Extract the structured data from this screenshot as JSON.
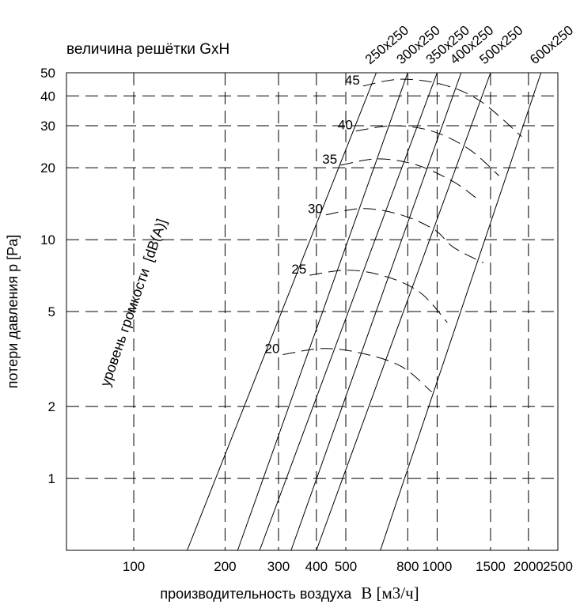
{
  "chart_data": {
    "type": "line",
    "title": "величина решётки GxH",
    "xlabel": "производительность воздуха",
    "xlabel_symbol": "B [м3/ч]",
    "ylabel": "потери давления p [Pa]",
    "noise_label": "уровень громкости  [dB(A)]",
    "x_scale": "log",
    "y_scale": "log",
    "xlim": [
      60,
      2500
    ],
    "ylim": [
      0.5,
      50
    ],
    "x_ticks": [
      100,
      200,
      300,
      400,
      500,
      800,
      1000,
      1500,
      2000,
      2500
    ],
    "y_ticks": [
      1,
      2,
      5,
      10,
      20,
      30,
      40,
      50
    ],
    "grid": true,
    "grille_series": [
      {
        "name": "250x250",
        "points": [
          [
            150,
            0.5
          ],
          [
            630,
            50
          ]
        ]
      },
      {
        "name": "300x250",
        "points": [
          [
            220,
            0.5
          ],
          [
            800,
            50
          ]
        ]
      },
      {
        "name": "350x250",
        "points": [
          [
            260,
            0.5
          ],
          [
            1000,
            50
          ]
        ]
      },
      {
        "name": "400x250",
        "points": [
          [
            330,
            0.5
          ],
          [
            1200,
            50
          ]
        ]
      },
      {
        "name": "500x250",
        "points": [
          [
            400,
            0.5
          ],
          [
            1500,
            50
          ]
        ]
      },
      {
        "name": "600x250",
        "points": [
          [
            650,
            0.5
          ],
          [
            2200,
            50
          ]
        ]
      }
    ],
    "noise_series": [
      {
        "label": "20",
        "points": [
          [
            310,
            3.3
          ],
          [
            420,
            3.5
          ],
          [
            560,
            3.35
          ],
          [
            760,
            2.95
          ],
          [
            960,
            2.3
          ]
        ]
      },
      {
        "label": "25",
        "points": [
          [
            380,
            7.1
          ],
          [
            510,
            7.45
          ],
          [
            680,
            7.0
          ],
          [
            880,
            6.0
          ],
          [
            1080,
            4.5
          ]
        ]
      },
      {
        "label": "30",
        "points": [
          [
            430,
            12.7
          ],
          [
            570,
            13.5
          ],
          [
            760,
            12.7
          ],
          [
            980,
            11.0
          ],
          [
            1130,
            9.3
          ],
          [
            1420,
            8.0
          ]
        ]
      },
      {
        "label": "35",
        "points": [
          [
            480,
            20.5
          ],
          [
            640,
            21.8
          ],
          [
            860,
            20.5
          ],
          [
            1130,
            17.5
          ],
          [
            1340,
            15.0
          ]
        ]
      },
      {
        "label": "40",
        "points": [
          [
            540,
            28.5
          ],
          [
            720,
            30.0
          ],
          [
            960,
            28.5
          ],
          [
            1270,
            24.0
          ],
          [
            1600,
            18.5
          ]
        ]
      },
      {
        "label": "45",
        "points": [
          [
            570,
            44.0
          ],
          [
            760,
            47.0
          ],
          [
            1050,
            44.5
          ],
          [
            1390,
            38.0
          ],
          [
            1900,
            27.0
          ]
        ]
      }
    ]
  }
}
